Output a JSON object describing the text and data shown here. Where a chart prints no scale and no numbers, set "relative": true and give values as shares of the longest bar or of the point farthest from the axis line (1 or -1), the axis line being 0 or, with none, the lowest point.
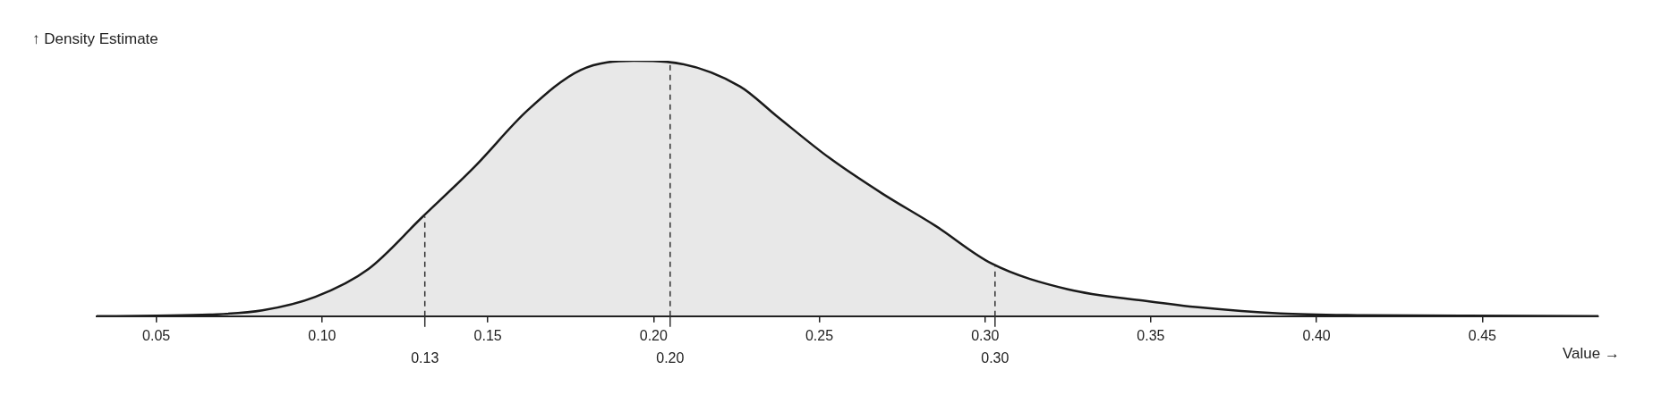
{
  "chart_data": {
    "type": "area",
    "relative": true,
    "xlabel": "Value →",
    "ylabel": "↑ Density Estimate",
    "xlim": [
      0.032,
      0.485
    ],
    "xticks": [
      {
        "value": 0.05,
        "label": "0.05"
      },
      {
        "value": 0.1,
        "label": "0.10"
      },
      {
        "value": 0.15,
        "label": "0.15"
      },
      {
        "value": 0.2,
        "label": "0.20"
      },
      {
        "value": 0.25,
        "label": "0.25"
      },
      {
        "value": 0.3,
        "label": "0.30"
      },
      {
        "value": 0.35,
        "label": "0.35"
      },
      {
        "value": 0.4,
        "label": "0.40"
      },
      {
        "value": 0.45,
        "label": "0.45"
      }
    ],
    "series": [
      {
        "color": "#1a1a1a",
        "x": [
          0.032,
          0.05,
          0.066,
          0.082,
          0.098,
          0.114,
          0.13,
          0.146,
          0.162,
          0.178,
          0.194,
          0.204,
          0.226,
          0.237,
          0.253,
          0.269,
          0.285,
          0.302,
          0.325,
          0.349,
          0.365,
          0.389,
          0.413,
          0.445,
          0.485
        ],
        "values": [
          0,
          0.002,
          0.006,
          0.023,
          0.076,
          0.185,
          0.385,
          0.585,
          0.806,
          0.964,
          1,
          0.996,
          0.9,
          0.785,
          0.62,
          0.48,
          0.354,
          0.206,
          0.105,
          0.059,
          0.034,
          0.011,
          0.004,
          0.002,
          0
        ]
      }
    ],
    "ref_lines": [
      {
        "axis": "x",
        "value": 0.131,
        "label": "0.13",
        "color": "#333333",
        "line_style": "dashed"
      },
      {
        "axis": "x",
        "value": 0.205,
        "label": "0.20",
        "color": "#333333",
        "line_style": "dashed"
      },
      {
        "axis": "x",
        "value": 0.303,
        "label": "0.30",
        "color": "#333333",
        "line_style": "dashed"
      }
    ],
    "grid": false,
    "legend": false
  }
}
